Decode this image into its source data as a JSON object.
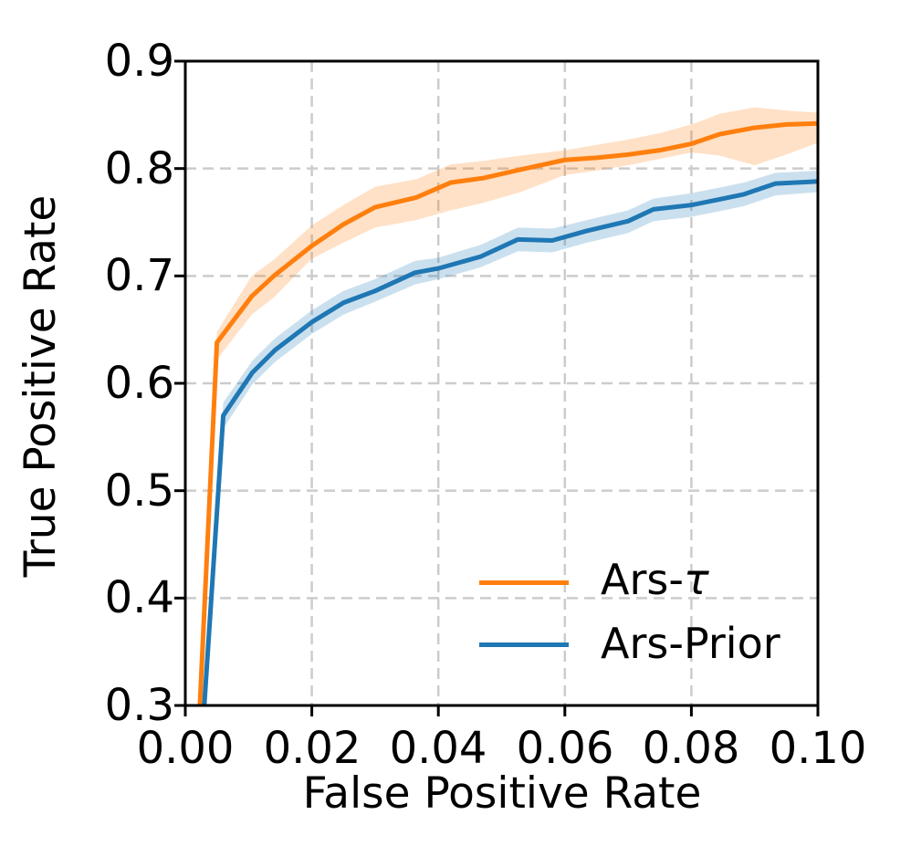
{
  "figure": {
    "background": "#ffffff"
  },
  "axes": {
    "xlabel": "False Positive Rate",
    "ylabel": "True Positive Rate",
    "x_tick_labels": [
      "0.00",
      "0.02",
      "0.04",
      "0.06",
      "0.08",
      "0.10"
    ],
    "y_tick_labels": [
      "0.9",
      "0.8",
      "0.7",
      "0.6",
      "0.5",
      "0.4",
      "0.3"
    ],
    "spine_color": "#000000",
    "grid_color": "#cccccc"
  },
  "legend": {
    "position": "lower right",
    "items": [
      {
        "label_prefix": "Ars-",
        "label_symbol": "τ",
        "label_full": "Ars-τ",
        "color": "#ff7f0e"
      },
      {
        "label": "Ars-Prior",
        "color": "#1f77b4"
      }
    ]
  },
  "chart_data": {
    "type": "line",
    "title": "",
    "xlabel": "False Positive Rate",
    "ylabel": "True Positive Rate",
    "xlim": [
      0.0,
      0.1
    ],
    "ylim": [
      0.3,
      0.9
    ],
    "x_ticks": [
      0.0,
      0.02,
      0.04,
      0.06,
      0.08,
      0.1
    ],
    "y_ticks": [
      0.3,
      0.4,
      0.5,
      0.6,
      0.7,
      0.8,
      0.9
    ],
    "grid": true,
    "grid_style": "dashed",
    "legend_position": "lower right",
    "series": [
      {
        "name": "Ars-τ",
        "color": "#ff7f0e",
        "band_alpha": 0.23,
        "x": [
          0.0023,
          0.005,
          0.0105,
          0.014,
          0.02,
          0.025,
          0.03,
          0.0365,
          0.042,
          0.047,
          0.053,
          0.06,
          0.065,
          0.07,
          0.075,
          0.08,
          0.0845,
          0.09,
          0.095,
          0.1
        ],
        "y": [
          0.3,
          0.638,
          0.681,
          0.7,
          0.728,
          0.748,
          0.764,
          0.773,
          0.787,
          0.791,
          0.799,
          0.808,
          0.81,
          0.813,
          0.817,
          0.823,
          0.832,
          0.838,
          0.841,
          0.842
        ],
        "y_lo": [
          0.3,
          0.622,
          0.664,
          0.68,
          0.716,
          0.731,
          0.745,
          0.752,
          0.761,
          0.768,
          0.778,
          0.794,
          0.798,
          0.803,
          0.809,
          0.815,
          0.812,
          0.803,
          0.813,
          0.824
        ],
        "y_hi": [
          0.3,
          0.648,
          0.7,
          0.715,
          0.747,
          0.766,
          0.783,
          0.79,
          0.804,
          0.807,
          0.812,
          0.817,
          0.822,
          0.827,
          0.833,
          0.841,
          0.851,
          0.857,
          0.854,
          0.852
        ]
      },
      {
        "name": "Ars-Prior",
        "color": "#1f77b4",
        "band_alpha": 0.23,
        "x": [
          0.003,
          0.006,
          0.0106,
          0.0142,
          0.02,
          0.025,
          0.03,
          0.0363,
          0.04,
          0.0467,
          0.0526,
          0.058,
          0.0635,
          0.07,
          0.074,
          0.08,
          0.0842,
          0.0883,
          0.0933,
          0.1
        ],
        "y": [
          0.3,
          0.57,
          0.61,
          0.631,
          0.657,
          0.675,
          0.686,
          0.703,
          0.707,
          0.718,
          0.734,
          0.733,
          0.742,
          0.751,
          0.762,
          0.766,
          0.771,
          0.776,
          0.786,
          0.788
        ],
        "y_lo": [
          0.3,
          0.558,
          0.599,
          0.62,
          0.646,
          0.664,
          0.676,
          0.692,
          0.697,
          0.708,
          0.723,
          0.722,
          0.731,
          0.74,
          0.751,
          0.755,
          0.76,
          0.765,
          0.775,
          0.778
        ],
        "y_hi": [
          0.3,
          0.582,
          0.621,
          0.642,
          0.668,
          0.686,
          0.697,
          0.714,
          0.717,
          0.729,
          0.745,
          0.744,
          0.752,
          0.761,
          0.772,
          0.777,
          0.782,
          0.787,
          0.796,
          0.798
        ]
      }
    ]
  }
}
